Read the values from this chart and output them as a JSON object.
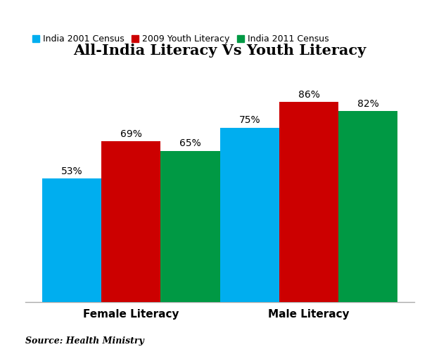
{
  "title": "All-India Literacy Vs Youth Literacy",
  "categories": [
    "Female Literacy",
    "Male Literacy"
  ],
  "series": [
    {
      "label": "India 2001 Census",
      "color": "#00AEEF",
      "values": [
        53,
        75
      ]
    },
    {
      "label": "2009 Youth Literacy",
      "color": "#CC0000",
      "values": [
        69,
        86
      ]
    },
    {
      "label": "India 2011 Census",
      "color": "#009944",
      "values": [
        65,
        82
      ]
    }
  ],
  "ylim": [
    0,
    100
  ],
  "bar_width": 0.18,
  "group_centers": [
    0.27,
    0.81
  ],
  "source_text": "Source: Health Ministry",
  "title_fontsize": 15,
  "label_fontsize": 11,
  "legend_fontsize": 9,
  "annotation_fontsize": 10,
  "source_fontsize": 9,
  "background_color": "#FFFFFF"
}
